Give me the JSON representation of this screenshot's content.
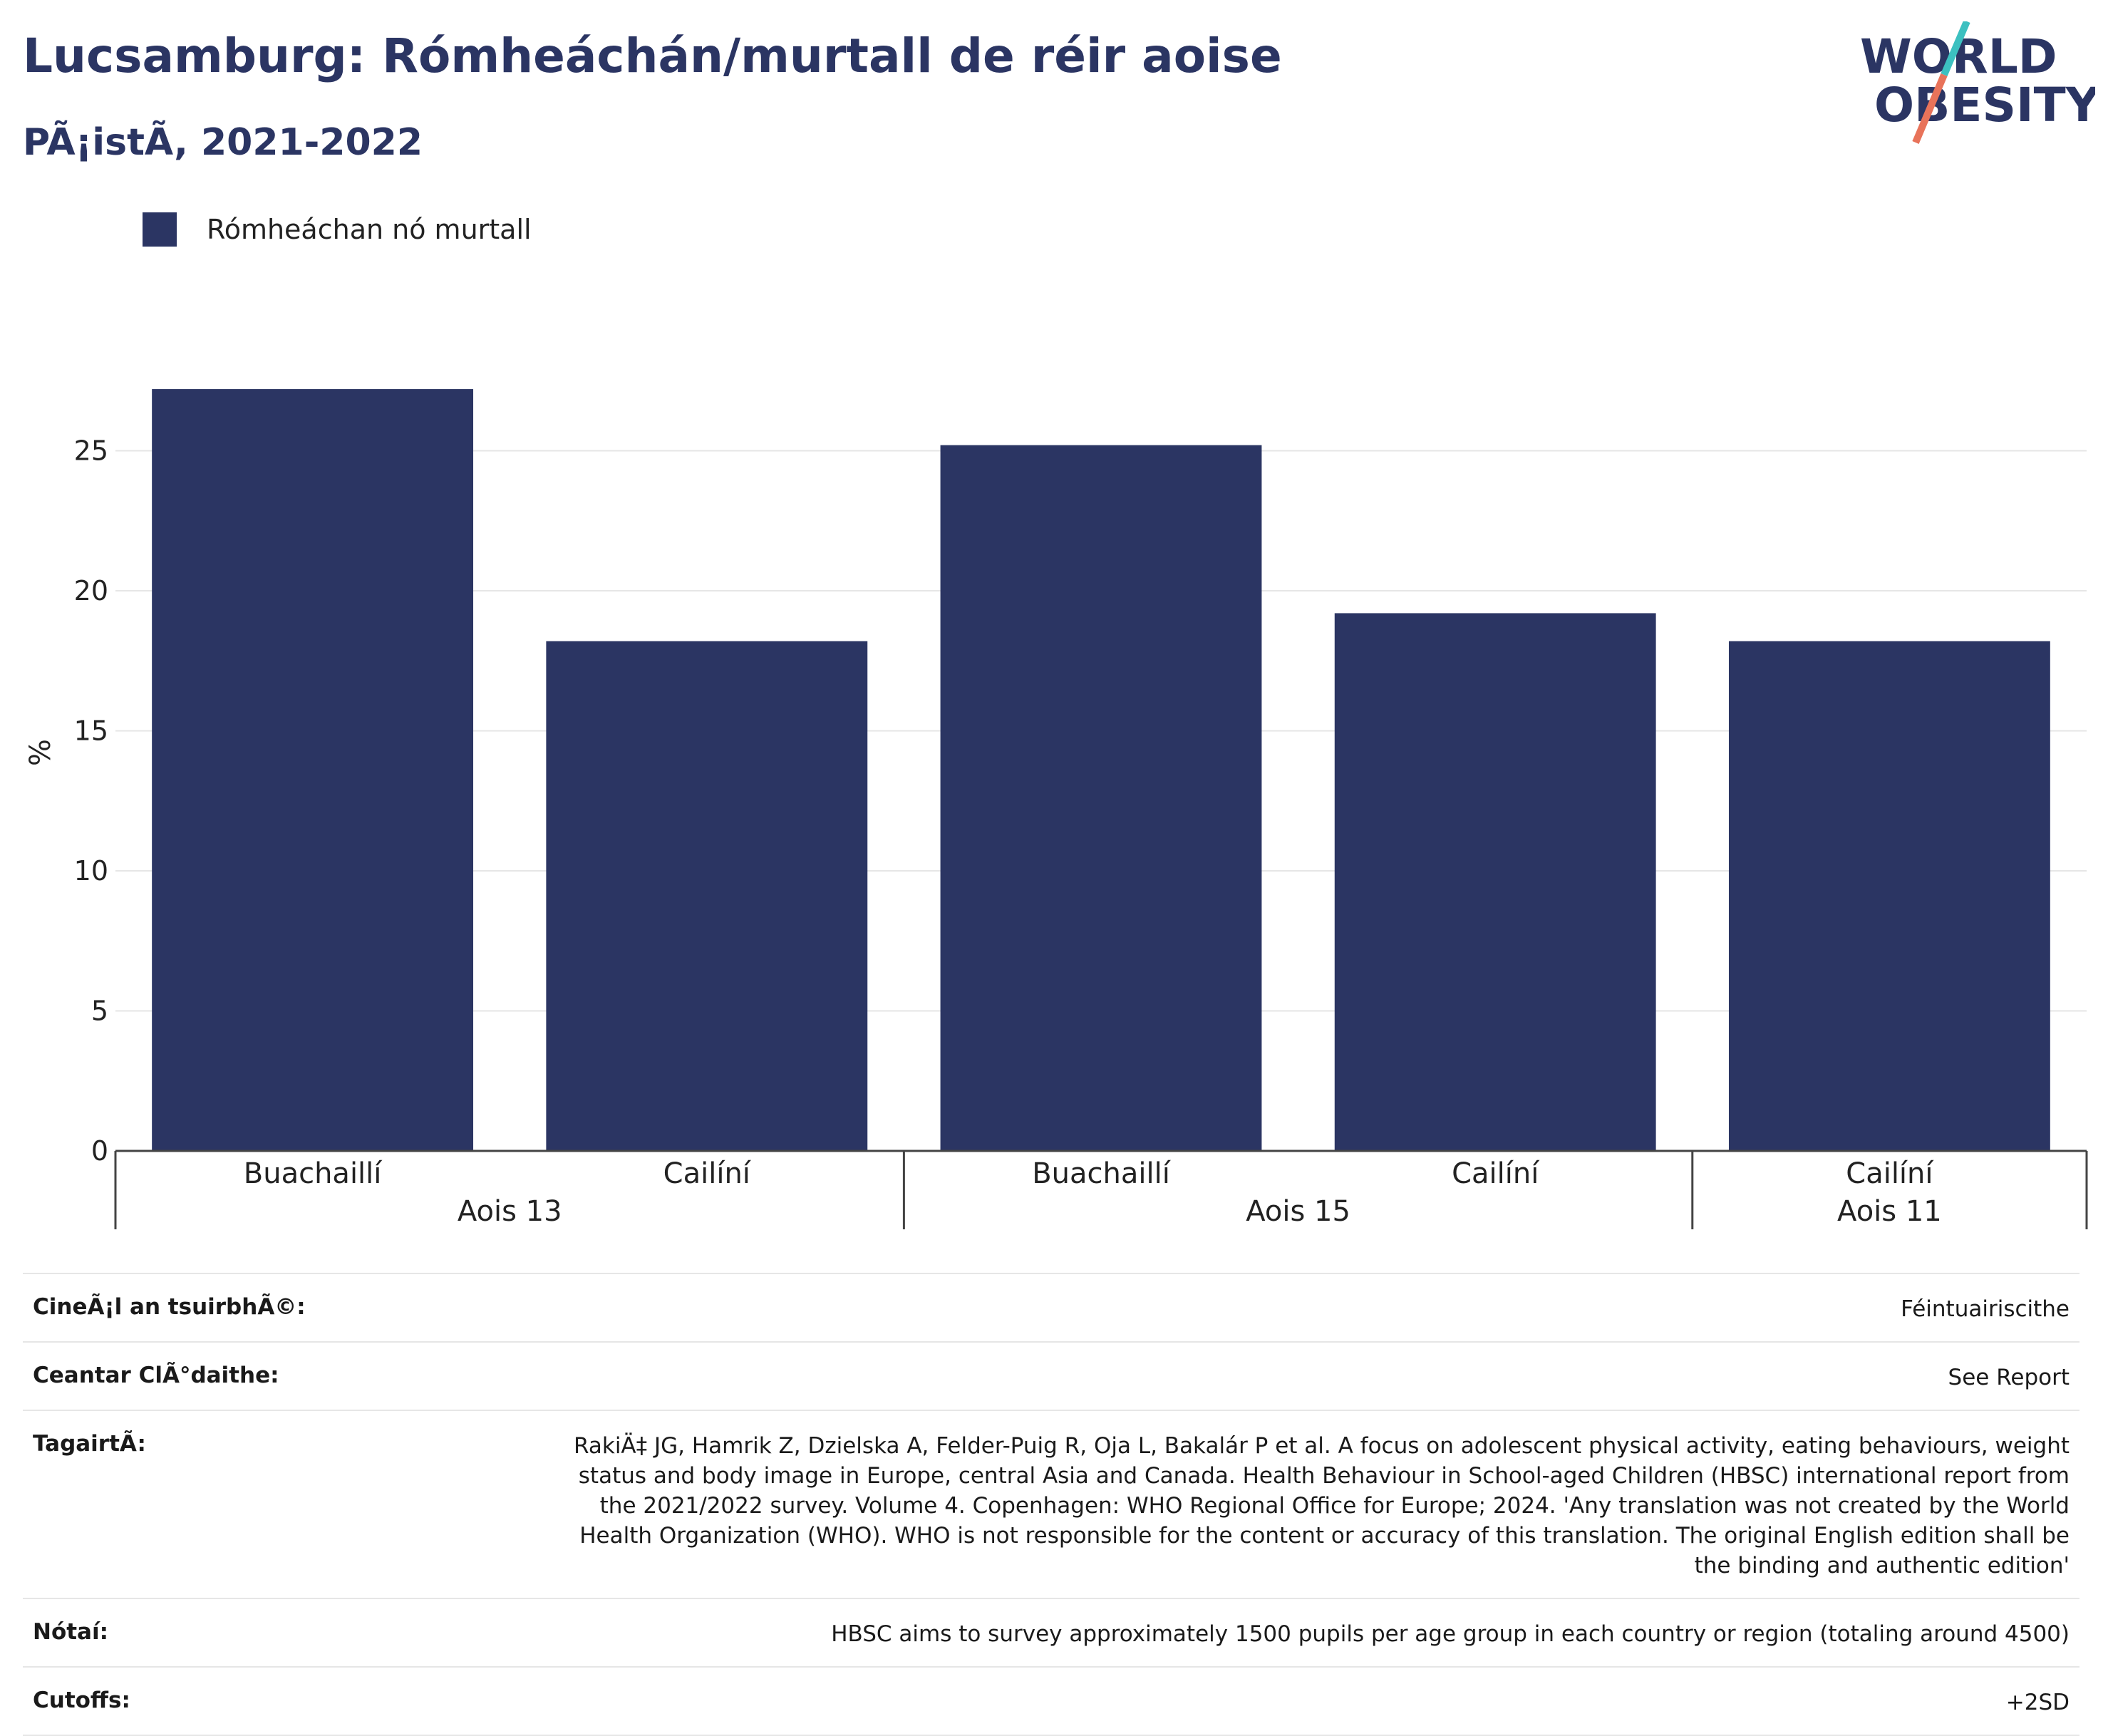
{
  "header": {
    "title": "Lucsamburg: Rómheáchán/murtall de réir aoise",
    "subtitle": "PÃ¡istÃ, 2021-2022"
  },
  "logo": {
    "line1": "WORLD",
    "line2": "OBESITY",
    "colors": {
      "text": "#2b3563",
      "slash_top": "#3cc0c0",
      "slash_bottom": "#e8735a"
    }
  },
  "legend": {
    "label": "Rómheáchan nó murtall",
    "color": "#2b3563"
  },
  "chart_data": {
    "type": "bar",
    "ylabel": "%",
    "ylim": [
      0,
      28
    ],
    "yticks": [
      0,
      5,
      10,
      15,
      20,
      25
    ],
    "grid": true,
    "bar_color": "#2b3563",
    "groups": [
      {
        "label": "Aois 13",
        "categories": [
          "Buachaillí",
          "Cailíní"
        ],
        "values": [
          27.2,
          18.2
        ]
      },
      {
        "label": "Aois 15",
        "categories": [
          "Buachaillí",
          "Cailíní"
        ],
        "values": [
          25.2,
          19.2
        ]
      },
      {
        "label": "Aois 11",
        "categories": [
          "Cailíní"
        ],
        "values": [
          18.2
        ]
      }
    ],
    "series": [
      {
        "name": "Rómheáchan nó murtall",
        "values": [
          27.2,
          18.2,
          25.2,
          19.2,
          18.2
        ]
      }
    ]
  },
  "meta": [
    {
      "key": "CineÃ¡l an tsuirbhÃ©:",
      "value": "Féintuairiscithe"
    },
    {
      "key": "Ceantar ClÃ°daithe:",
      "value": "See Report"
    },
    {
      "key": "TagairtÃ:",
      "value": "RakiÄ‡ JG, Hamrik Z, Dzielska A, Felder-Puig R, Oja L, Bakalár P et al. A focus on adolescent physical activity, eating behaviours, weight status and body image in Europe, central Asia and Canada. Health Behaviour in School-aged Children (HBSC) international report from the 2021/2022 survey. Volume 4. Copenhagen: WHO Regional Office for Europe; 2024. 'Any translation was not created by the World Health Organization (WHO). WHO is not responsible for the content or accuracy of this translation. The original English edition shall be the binding and authentic edition'"
    },
    {
      "key": "Nótaí:",
      "value": "HBSC aims to survey approximately 1500 pupils per age group in each country or region (totaling around 4500)"
    },
    {
      "key": "Cutoffs:",
      "value": "+2SD"
    }
  ]
}
